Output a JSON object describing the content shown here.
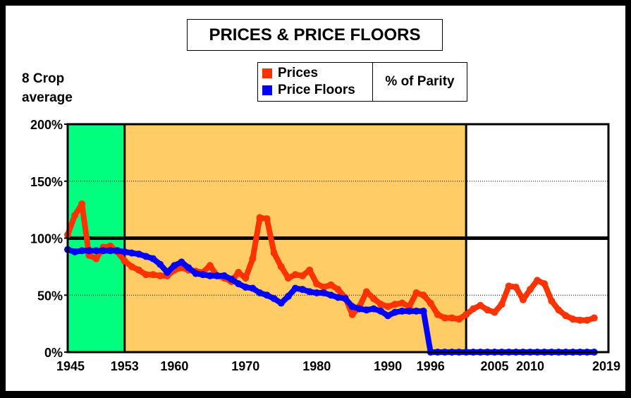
{
  "chart_data": {
    "type": "line",
    "title": "PRICES & PRICE FLOORS",
    "ylabel": "8 Crop average",
    "unit_label": "% of Parity",
    "xlim": [
      1945,
      2019
    ],
    "ylim": [
      0,
      200
    ],
    "y_ticks": [
      "0%",
      "50%",
      "100%",
      "150%",
      "200%"
    ],
    "x_ticks": [
      "1945",
      "1953",
      "1960",
      "1970",
      "1980",
      "1990",
      "1996",
      "2005",
      "2010",
      "2019"
    ],
    "x_tick_values": [
      1945,
      1953,
      1960,
      1970,
      1980,
      1990,
      1996,
      2005,
      2010,
      2019
    ],
    "reference_line": 100,
    "regions": [
      {
        "from": 1945,
        "to": 1953,
        "color": "#00ff7f"
      },
      {
        "from": 1953,
        "to": 2001,
        "color": "#ffcc66"
      },
      {
        "from": 2001,
        "to": 2021,
        "color": "#ffffff"
      }
    ],
    "series": [
      {
        "name": "Prices",
        "color": "#ff3300",
        "x": [
          1945,
          1946,
          1947,
          1948,
          1949,
          1950,
          1951,
          1952,
          1953,
          1954,
          1955,
          1956,
          1957,
          1958,
          1959,
          1960,
          1961,
          1962,
          1963,
          1964,
          1965,
          1966,
          1967,
          1968,
          1969,
          1970,
          1971,
          1972,
          1973,
          1974,
          1975,
          1976,
          1977,
          1978,
          1979,
          1980,
          1981,
          1982,
          1983,
          1984,
          1985,
          1986,
          1987,
          1988,
          1989,
          1990,
          1991,
          1992,
          1993,
          1994,
          1995,
          1996,
          1997,
          1998,
          1999,
          2000,
          2001,
          2002,
          2003,
          2004,
          2005,
          2006,
          2007,
          2008,
          2009,
          2010,
          2011,
          2012,
          2013,
          2014,
          2015,
          2016,
          2017,
          2018,
          2019
        ],
        "values": [
          103,
          120,
          130,
          85,
          82,
          92,
          93,
          88,
          80,
          75,
          72,
          68,
          68,
          67,
          67,
          72,
          74,
          72,
          71,
          70,
          76,
          67,
          65,
          62,
          70,
          65,
          82,
          118,
          117,
          87,
          75,
          65,
          68,
          67,
          72,
          60,
          57,
          59,
          55,
          48,
          33,
          40,
          53,
          47,
          42,
          40,
          42,
          43,
          40,
          52,
          50,
          43,
          33,
          30,
          30,
          29,
          33,
          38,
          41,
          37,
          35,
          42,
          58,
          57,
          46,
          55,
          63,
          60,
          45,
          37,
          32,
          29,
          28,
          28,
          30
        ]
      },
      {
        "name": "Price Floors",
        "color": "#0000ff",
        "x": [
          1945,
          1946,
          1947,
          1948,
          1949,
          1950,
          1951,
          1952,
          1953,
          1954,
          1955,
          1956,
          1957,
          1958,
          1959,
          1960,
          1961,
          1962,
          1963,
          1964,
          1965,
          1966,
          1967,
          1968,
          1969,
          1970,
          1971,
          1972,
          1973,
          1974,
          1975,
          1976,
          1977,
          1978,
          1979,
          1980,
          1981,
          1982,
          1983,
          1984,
          1985,
          1986,
          1987,
          1988,
          1989,
          1990,
          1991,
          1992,
          1993,
          1994,
          1995,
          1996,
          1997,
          1998,
          1999,
          2000,
          2001,
          2002,
          2003,
          2004,
          2005,
          2006,
          2007,
          2008,
          2009,
          2010,
          2011,
          2012,
          2013,
          2014,
          2015,
          2016,
          2017,
          2018,
          2019
        ],
        "values": [
          90,
          88,
          89,
          89,
          89,
          89,
          89,
          89,
          88,
          87,
          86,
          84,
          82,
          77,
          70,
          76,
          79,
          74,
          69,
          68,
          67,
          67,
          67,
          64,
          60,
          57,
          56,
          52,
          50,
          47,
          43,
          49,
          56,
          55,
          53,
          52,
          52,
          50,
          48,
          47,
          40,
          38,
          37,
          38,
          36,
          32,
          35,
          36,
          36,
          36,
          36,
          0,
          0,
          0,
          0,
          0,
          0,
          0,
          0,
          0,
          0,
          0,
          0,
          0,
          0,
          0,
          0,
          0,
          0,
          0,
          0,
          0,
          0,
          0,
          0
        ]
      }
    ]
  }
}
